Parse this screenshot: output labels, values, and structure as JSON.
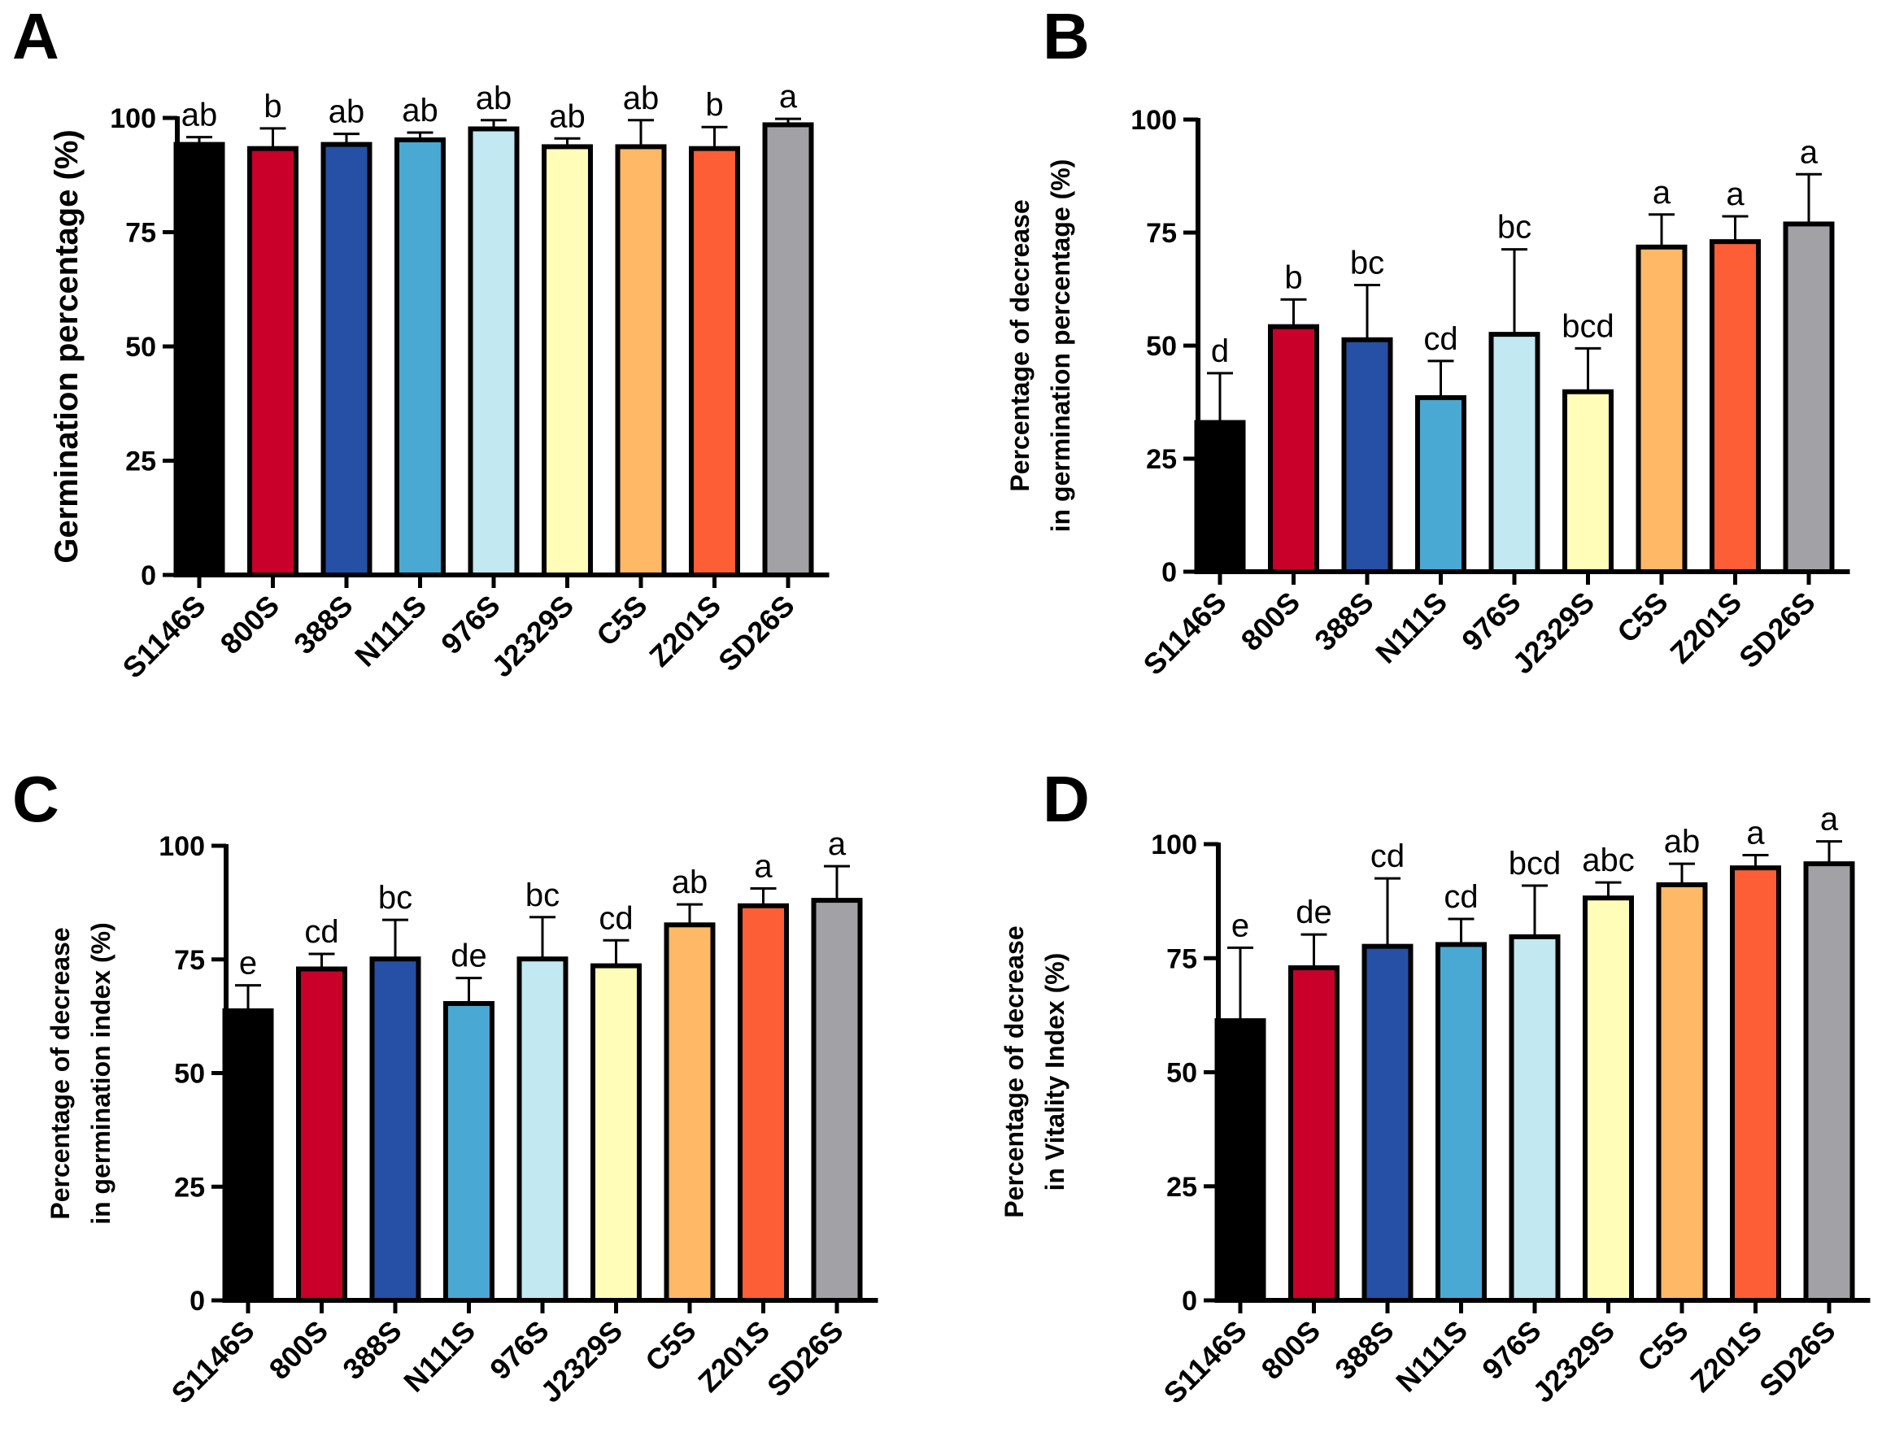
{
  "figure": {
    "colors": [
      "#000000",
      "#C8002A",
      "#2650A6",
      "#49A9D2",
      "#C2E8F2",
      "#FFFDB7",
      "#FEB866",
      "#FE5E36",
      "#A2A2A6"
    ],
    "outline_color": "#000000"
  },
  "chart_data": [
    {
      "id": "A",
      "type": "bar",
      "panel_label": "A",
      "title": "",
      "xlabel": "",
      "ylabel": [
        "Germination percentage (%)"
      ],
      "categories": [
        "S1146S",
        "800S",
        "388S",
        "N111S",
        "976S",
        "J2329S",
        "C5S",
        "Z201S",
        "SD26S"
      ],
      "values": [
        94.2,
        93.3,
        94.2,
        95.2,
        97.6,
        93.7,
        93.7,
        93.3,
        98.5
      ],
      "errors": [
        1.6,
        4.4,
        2.3,
        1.6,
        1.9,
        1.8,
        5.8,
        4.7,
        1.3
      ],
      "significance": [
        "ab",
        "b",
        "ab",
        "ab",
        "ab",
        "ab",
        "ab",
        "b",
        "a"
      ],
      "ylim": [
        0,
        100
      ],
      "yticks": [
        "0",
        "25",
        "50",
        "75",
        "100"
      ],
      "grid": false
    },
    {
      "id": "B",
      "type": "bar",
      "panel_label": "B",
      "title": "",
      "xlabel": "",
      "ylabel": [
        "Percentage of decrease",
        "in germination percentage (%)"
      ],
      "categories": [
        "S1146S",
        "800S",
        "388S",
        "N111S",
        "976S",
        "J2329S",
        "C5S",
        "Z201S",
        "SD26S"
      ],
      "values": [
        33.0,
        54.2,
        51.3,
        38.5,
        52.5,
        39.8,
        71.8,
        73.0,
        76.9
      ],
      "errors": [
        10.9,
        6.0,
        12.1,
        8.1,
        18.8,
        9.6,
        7.2,
        5.6,
        11.0
      ],
      "significance": [
        "d",
        "b",
        "bc",
        "cd",
        "bc",
        "bcd",
        "a",
        "a",
        "a"
      ],
      "ylim": [
        0,
        100
      ],
      "yticks": [
        "0",
        "25",
        "50",
        "75",
        "100"
      ],
      "grid": false
    },
    {
      "id": "C",
      "type": "bar",
      "panel_label": "C",
      "title": "",
      "xlabel": "",
      "ylabel": [
        "Percentage of decrease",
        "in germination index (%)"
      ],
      "categories": [
        "S1146S",
        "800S",
        "388S",
        "N111S",
        "976S",
        "J2329S",
        "C5S",
        "Z201S",
        "SD26S"
      ],
      "values": [
        63.7,
        72.9,
        75.1,
        65.3,
        75.1,
        73.6,
        82.6,
        86.8,
        88.0
      ],
      "errors": [
        5.6,
        3.3,
        8.6,
        5.6,
        9.2,
        5.6,
        4.5,
        3.8,
        7.5
      ],
      "significance": [
        "e",
        "cd",
        "bc",
        "de",
        "bc",
        "cd",
        "ab",
        "a",
        "a"
      ],
      "ylim": [
        0,
        100
      ],
      "yticks": [
        "0",
        "25",
        "50",
        "75",
        "100"
      ],
      "grid": false
    },
    {
      "id": "D",
      "type": "bar",
      "panel_label": "D",
      "title": "",
      "xlabel": "",
      "ylabel": [
        "Percentage of decrease",
        "in Vitality Index (%)"
      ],
      "categories": [
        "S1146S",
        "800S",
        "388S",
        "N111S",
        "976S",
        "J2329S",
        "C5S",
        "Z201S",
        "SD26S"
      ],
      "values": [
        61.3,
        72.9,
        77.6,
        78.0,
        79.7,
        88.2,
        91.1,
        94.8,
        95.7
      ],
      "errors": [
        16.0,
        7.3,
        14.9,
        5.6,
        11.2,
        3.4,
        4.6,
        2.8,
        4.9
      ],
      "significance": [
        "e",
        "de",
        "cd",
        "cd",
        "bcd",
        "abc",
        "ab",
        "a",
        "a"
      ],
      "ylim": [
        0,
        100
      ],
      "yticks": [
        "0",
        "25",
        "50",
        "75",
        "100"
      ],
      "grid": false
    }
  ]
}
